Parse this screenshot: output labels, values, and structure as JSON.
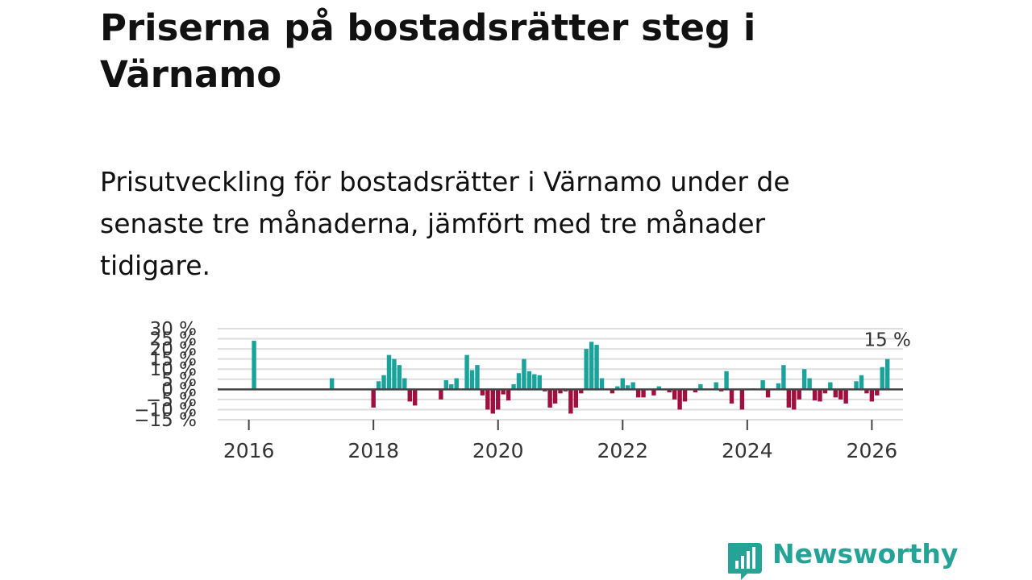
{
  "title": "Priserna på bostadsrätter steg i Värnamo",
  "subtitle": "Prisutveckling för bostadsrätter i Värnamo under de senaste tre månaderna, jämfört med tre månader tidigare.",
  "logo": {
    "name": "Newsworthy",
    "icon": "bar-chart-speech-bubble-icon"
  },
  "colors": {
    "positive": "#1aa39a",
    "negative": "#a0103f",
    "brand": "#25a396",
    "zero_line": "#444444",
    "grid": "#dddddd"
  },
  "chart_data": {
    "type": "bar",
    "xlim": [
      "2015-07",
      "2026-07"
    ],
    "ylim": [
      -15,
      30
    ],
    "y_ticks": [
      30,
      25,
      20,
      15,
      10,
      5,
      0,
      -5,
      -10,
      -15
    ],
    "y_tick_labels": [
      "30 %",
      "25 %",
      "20 %",
      "15 %",
      "10 %",
      "5 %",
      "0 %",
      "−5 %",
      "−10 %",
      "−15 %"
    ],
    "x_ticks": [
      "2016",
      "2018",
      "2020",
      "2022",
      "2024",
      "2026"
    ],
    "grid": true,
    "last_value_label": "15 %",
    "series": [
      {
        "values": [
          [
            "2016-02",
            24
          ],
          [
            "2017-05",
            5.5
          ],
          [
            "2018-01",
            -9
          ],
          [
            "2018-02",
            4
          ],
          [
            "2018-03",
            7
          ],
          [
            "2018-04",
            17
          ],
          [
            "2018-05",
            15
          ],
          [
            "2018-06",
            12
          ],
          [
            "2018-07",
            5.5
          ],
          [
            "2018-08",
            -6
          ],
          [
            "2018-09",
            -8
          ],
          [
            "2019-02",
            -5
          ],
          [
            "2019-03",
            4.5
          ],
          [
            "2019-04",
            2.5
          ],
          [
            "2019-05",
            5.5
          ],
          [
            "2019-07",
            17
          ],
          [
            "2019-08",
            9.5
          ],
          [
            "2019-09",
            12
          ],
          [
            "2019-10",
            -3
          ],
          [
            "2019-11",
            -10
          ],
          [
            "2019-12",
            -12
          ],
          [
            "2020-01",
            -10
          ],
          [
            "2020-02",
            -2.5
          ],
          [
            "2020-03",
            -5.5
          ],
          [
            "2020-04",
            2.5
          ],
          [
            "2020-05",
            8
          ],
          [
            "2020-06",
            15
          ],
          [
            "2020-07",
            9
          ],
          [
            "2020-08",
            7.5
          ],
          [
            "2020-09",
            7
          ],
          [
            "2020-10",
            -1
          ],
          [
            "2020-11",
            -9
          ],
          [
            "2020-12",
            -7
          ],
          [
            "2021-01",
            -2
          ],
          [
            "2021-02",
            -1
          ],
          [
            "2021-03",
            -12
          ],
          [
            "2021-04",
            -9
          ],
          [
            "2021-05",
            -2
          ],
          [
            "2021-06",
            20
          ],
          [
            "2021-07",
            23.5
          ],
          [
            "2021-08",
            22
          ],
          [
            "2021-09",
            5.5
          ],
          [
            "2021-11",
            -2
          ],
          [
            "2021-12",
            1.5
          ],
          [
            "2022-01",
            5.5
          ],
          [
            "2022-02",
            2
          ],
          [
            "2022-03",
            3.5
          ],
          [
            "2022-04",
            -4
          ],
          [
            "2022-05",
            -4
          ],
          [
            "2022-07",
            -3
          ],
          [
            "2022-08",
            1.5
          ],
          [
            "2022-10",
            -1.5
          ],
          [
            "2022-11",
            -5
          ],
          [
            "2022-12",
            -10
          ],
          [
            "2023-01",
            -6
          ],
          [
            "2023-03",
            -1.5
          ],
          [
            "2023-04",
            2.5
          ],
          [
            "2023-07",
            3.5
          ],
          [
            "2023-08",
            -1
          ],
          [
            "2023-09",
            9
          ],
          [
            "2023-10",
            -7
          ],
          [
            "2023-12",
            -10
          ],
          [
            "2024-02",
            0.5
          ],
          [
            "2024-04",
            4.5
          ],
          [
            "2024-05",
            -4
          ],
          [
            "2024-07",
            3
          ],
          [
            "2024-08",
            12
          ],
          [
            "2024-09",
            -9
          ],
          [
            "2024-10",
            -10
          ],
          [
            "2024-11",
            -5
          ],
          [
            "2024-12",
            10
          ],
          [
            "2025-01",
            5.5
          ],
          [
            "2025-02",
            -5.5
          ],
          [
            "2025-03",
            -6
          ],
          [
            "2025-04",
            -2
          ],
          [
            "2025-05",
            3.5
          ],
          [
            "2025-06",
            -4
          ],
          [
            "2025-07",
            -5
          ],
          [
            "2025-08",
            -7
          ],
          [
            "2025-10",
            4
          ],
          [
            "2025-11",
            7
          ],
          [
            "2025-12",
            -2
          ],
          [
            "2026-01",
            -6
          ],
          [
            "2026-02",
            -3
          ],
          [
            "2026-03",
            11
          ],
          [
            "2026-04",
            15
          ]
        ]
      }
    ]
  }
}
